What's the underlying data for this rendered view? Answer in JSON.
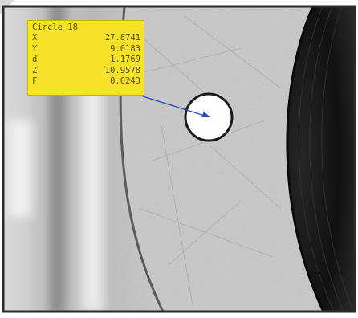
{
  "measurement": {
    "title": "Circle 18",
    "rows": [
      {
        "key": "X",
        "value": "27.8741"
      },
      {
        "key": "Y",
        "value": "9.0183"
      },
      {
        "key": "d",
        "value": "1.1769"
      },
      {
        "key": "Z",
        "value": "10.9578"
      },
      {
        "key": "F",
        "value": "0.0243"
      }
    ]
  },
  "colors": {
    "label_bg": "#f7e22a",
    "leader_line": "#2a4dbf",
    "frame": "#2b2b2b",
    "hole_edge": "#1a1a1a"
  }
}
